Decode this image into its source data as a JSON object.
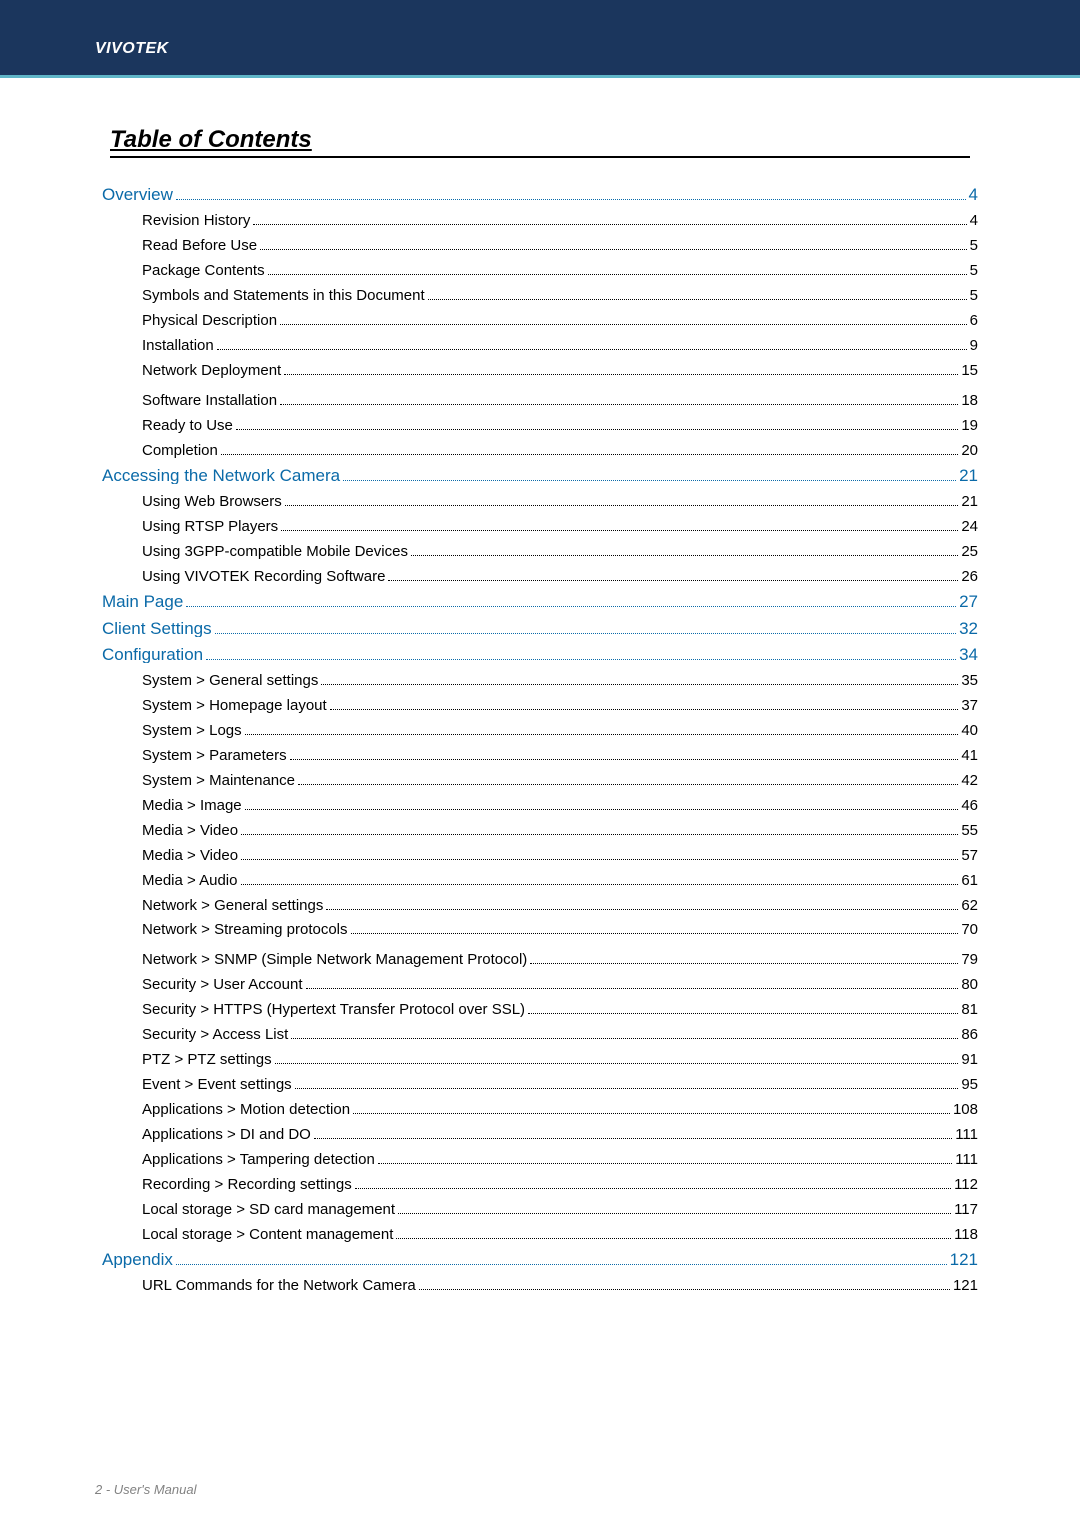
{
  "brand": "VIVOTEK",
  "title": "Table of Contents",
  "footer": "2 - User's Manual",
  "colors": {
    "header_bg": "#1b365d",
    "header_underline": "#5fb5c7",
    "link_color": "#0b6aa8",
    "text_color": "#000000",
    "page_bg": "#ffffff",
    "outer_bg": "#b5b5b5",
    "footer_color": "#828282"
  },
  "toc": [
    {
      "type": "section",
      "label": "Overview",
      "page": "4"
    },
    {
      "type": "sub",
      "label": "Revision History",
      "page": "4"
    },
    {
      "type": "sub",
      "label": "Read Before Use",
      "page": "5"
    },
    {
      "type": "sub",
      "label": "Package Contents",
      "page": "5"
    },
    {
      "type": "sub",
      "label": "Symbols and Statements in this Document",
      "page": "5"
    },
    {
      "type": "sub",
      "label": "Physical Description",
      "page": "6"
    },
    {
      "type": "sub",
      "label": "Installation",
      "page": "9"
    },
    {
      "type": "sub",
      "label": "Network Deployment",
      "page": "15"
    },
    {
      "type": "gap"
    },
    {
      "type": "sub",
      "label": "Software Installation",
      "page": "18"
    },
    {
      "type": "sub",
      "label": "Ready to Use",
      "page": "19"
    },
    {
      "type": "sub",
      "label": "Completion",
      "page": "20"
    },
    {
      "type": "section",
      "label": "Accessing the Network Camera",
      "page": "21"
    },
    {
      "type": "sub",
      "label": "Using Web Browsers",
      "page": "21"
    },
    {
      "type": "sub",
      "label": "Using RTSP Players",
      "page": "24"
    },
    {
      "type": "sub",
      "label": "Using 3GPP-compatible Mobile Devices",
      "page": "25"
    },
    {
      "type": "sub",
      "label": "Using VIVOTEK Recording Software",
      "page": "26"
    },
    {
      "type": "section",
      "label": "Main Page",
      "page": "27"
    },
    {
      "type": "section",
      "label": "Client Settings",
      "page": "32"
    },
    {
      "type": "section",
      "label": "Configuration",
      "page": "34"
    },
    {
      "type": "sub",
      "label": "System > General settings",
      "page": "35"
    },
    {
      "type": "sub",
      "label": "System > Homepage layout ",
      "page": "37"
    },
    {
      "type": "sub",
      "label": "System > Logs",
      "page": "40"
    },
    {
      "type": "sub",
      "label": "System > Parameters ",
      "page": "41"
    },
    {
      "type": "sub",
      "label": "System > Maintenance",
      "page": "42"
    },
    {
      "type": "sub",
      "label": "Media > Image  ",
      "page": "46"
    },
    {
      "type": "sub",
      "label": "Media > Video",
      "page": "55"
    },
    {
      "type": "sub",
      "label": "Media > Video",
      "page": "57"
    },
    {
      "type": "sub",
      "label": "Media > Audio",
      "page": "61"
    },
    {
      "type": "sub",
      "label": "Network > General settings",
      "page": "62"
    },
    {
      "type": "sub",
      "label": "Network > Streaming protocols  ",
      "page": "70"
    },
    {
      "type": "gap"
    },
    {
      "type": "sub",
      "label": "Network > SNMP (Simple Network Management Protocol)",
      "page": "79"
    },
    {
      "type": "sub",
      "label": "Security > User Account",
      "page": "80"
    },
    {
      "type": "sub",
      "label": "Security >  HTTPS (Hypertext Transfer Protocol over SSL)    ",
      "page": "81"
    },
    {
      "type": "sub",
      "label": "Security >  Access List ",
      "page": "86"
    },
    {
      "type": "sub",
      "label": "PTZ > PTZ settings",
      "page": "91"
    },
    {
      "type": "sub",
      "label": "Event > Event settings",
      "page": "95"
    },
    {
      "type": "sub",
      "label": "Applications > Motion detection",
      "page": "108"
    },
    {
      "type": "sub",
      "label": "Applications > DI and DO",
      "page": "111"
    },
    {
      "type": "sub",
      "label": "Applications > Tampering detection ",
      "page": "111"
    },
    {
      "type": "sub",
      "label": "Recording > Recording settings ",
      "page": " 112"
    },
    {
      "type": "sub",
      "label": "Local storage > SD card management",
      "page": " 117"
    },
    {
      "type": "sub",
      "label": "Local storage > Content management",
      "page": " 118"
    },
    {
      "type": "section",
      "label": "Appendix",
      "page": "121"
    },
    {
      "type": "sub",
      "label": "URL Commands for the Network Camera",
      "page": "121"
    }
  ]
}
